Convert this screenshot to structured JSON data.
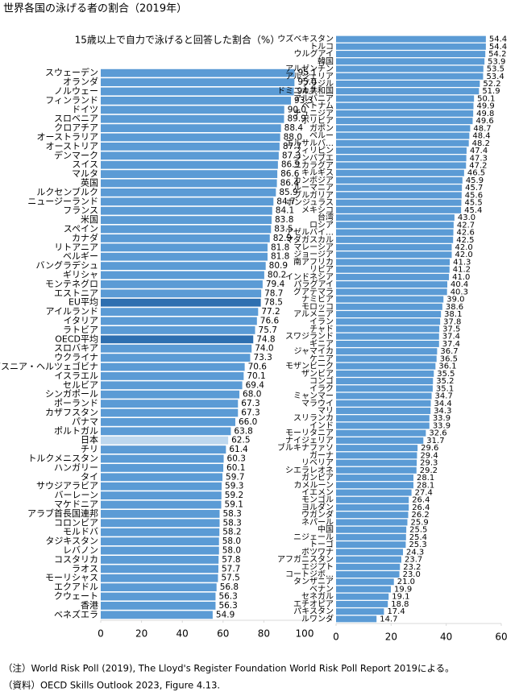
{
  "title": "世界各国の泳げる者の割合（2019年）",
  "notes": [
    "（注）World Risk Poll (2019), The Lloyd's Register Foundation World Risk Poll Report 2019による。",
    "（資料）OECD Skills Outlook 2023, Figure 4.13."
  ],
  "chart_data": [
    {
      "type": "bar",
      "orientation": "horizontal",
      "subtitle": "15歳以上で自力で泳げると回答した割合（%）",
      "categories": [
        "スウェーデン",
        "オランダ",
        "ノルウェー",
        "フィンランド",
        "ドイツ",
        "スロベニア",
        "クロアチア",
        "オーストラリア",
        "オーストリア",
        "デンマーク",
        "スイス",
        "マルタ",
        "英国",
        "ルクセンブルク",
        "ニュージーランド",
        "フランス",
        "米国",
        "スペイン",
        "カナダ",
        "リトアニア",
        "ベルギー",
        "バングラデシュ",
        "ギリシャ",
        "モンテネグロ",
        "エストニア",
        "EU平均",
        "アイルランド",
        "イタリア",
        "ラトビア",
        "OECD平均",
        "スロバキア",
        "ウクライナ",
        "ボスニア・ヘルツェゴビナ",
        "イスラエル",
        "セルビア",
        "シンガポール",
        "ポーランド",
        "カザフスタン",
        "パナマ",
        "ポルトガル",
        "日本",
        "チリ",
        "トルクメニスタン",
        "ハンガリー",
        "タイ",
        "サウジアラビア",
        "バーレーン",
        "マケドニア",
        "アラブ首長国連邦",
        "コロンビア",
        "モルドバ",
        "タジキスタン",
        "レバノン",
        "コスタリカ",
        "ラオス",
        "モーリシャス",
        "エクアドル",
        "クウェート",
        "香港",
        "ベネズエラ"
      ],
      "values": [
        95.1,
        95.0,
        94.7,
        93.3,
        90.0,
        89.9,
        88.4,
        88.0,
        87.7,
        87.3,
        86.9,
        86.6,
        86.4,
        85.9,
        84.7,
        84.1,
        83.8,
        83.5,
        82.9,
        81.8,
        81.8,
        80.9,
        80.2,
        79.4,
        78.7,
        78.5,
        77.2,
        76.6,
        75.7,
        74.8,
        74.0,
        73.3,
        70.6,
        70.1,
        69.4,
        68.0,
        67.3,
        67.3,
        66.0,
        63.8,
        62.5,
        61.4,
        60.3,
        60.1,
        59.7,
        59.3,
        59.2,
        59.1,
        58.3,
        58.3,
        58.2,
        58.0,
        58.0,
        57.8,
        57.7,
        57.5,
        56.8,
        56.3,
        56.3,
        54.9
      ],
      "value_labels": [
        "95.1",
        "95.0",
        "94.7",
        "93.3",
        "90.0",
        "89.9",
        "88.4",
        "88.0",
        "87.7",
        "87.3",
        "86.9",
        "86.6",
        "86.4",
        "85.9",
        "84.7",
        "84.1",
        "83.8",
        "83.5",
        "82.9",
        "81.8",
        "81.8",
        "80.9",
        "80.2",
        "79.4",
        "78.7",
        "78.5",
        "77.2",
        "76.6",
        "75.7",
        "74.8",
        "74.0",
        "73.3",
        "70.6",
        "70.1",
        "69.4",
        "68.0",
        "67.3",
        "67.3",
        "66.0",
        "63.8",
        "62.5",
        "61.4",
        "60.3",
        "60.1",
        "59.7",
        "59.3",
        "59.2",
        "59.1",
        "58.3",
        "58.3",
        "58.2",
        "58.0",
        "58.0",
        "57.8",
        "57.7",
        "57.5",
        "56.8",
        "56.3",
        "56.3",
        "54.9"
      ],
      "colors": [
        "#5b9bd5",
        "#5b9bd5",
        "#5b9bd5",
        "#5b9bd5",
        "#5b9bd5",
        "#5b9bd5",
        "#5b9bd5",
        "#5b9bd5",
        "#5b9bd5",
        "#5b9bd5",
        "#5b9bd5",
        "#5b9bd5",
        "#5b9bd5",
        "#5b9bd5",
        "#5b9bd5",
        "#5b9bd5",
        "#5b9bd5",
        "#5b9bd5",
        "#5b9bd5",
        "#5b9bd5",
        "#5b9bd5",
        "#5b9bd5",
        "#5b9bd5",
        "#5b9bd5",
        "#5b9bd5",
        "#2e6fb0",
        "#5b9bd5",
        "#5b9bd5",
        "#5b9bd5",
        "#2e6fb0",
        "#5b9bd5",
        "#5b9bd5",
        "#5b9bd5",
        "#5b9bd5",
        "#5b9bd5",
        "#5b9bd5",
        "#5b9bd5",
        "#5b9bd5",
        "#5b9bd5",
        "#5b9bd5",
        "#bdd7ee",
        "#5b9bd5",
        "#5b9bd5",
        "#5b9bd5",
        "#5b9bd5",
        "#5b9bd5",
        "#5b9bd5",
        "#5b9bd5",
        "#5b9bd5",
        "#5b9bd5",
        "#5b9bd5",
        "#5b9bd5",
        "#5b9bd5",
        "#5b9bd5",
        "#5b9bd5",
        "#5b9bd5",
        "#5b9bd5",
        "#5b9bd5",
        "#5b9bd5",
        "#5b9bd5"
      ],
      "xlim": [
        0,
        100
      ],
      "xticks": [
        0,
        20,
        40,
        60,
        80,
        100
      ]
    },
    {
      "type": "bar",
      "orientation": "horizontal",
      "categories": [
        "ウズベキスタン",
        "トルコ",
        "ウルグアイ",
        "韓国",
        "アルゼンチン",
        "アルジェリア",
        "ブラジル",
        "ドミニカ共和国",
        "アルバニア",
        "ベトナム",
        "チュニジア",
        "ボリビア",
        "ガボン",
        "ペルー",
        "エルサルバ…",
        "フィリピン",
        "ジンバブエ",
        "ニカラグア",
        "キルギス",
        "カンボジア",
        "ルーマニア",
        "ブルガリア",
        "ホンジュラス",
        "メキシコ",
        "台湾",
        "ロシア",
        "アゼルバイ…",
        "マダガスカル",
        "マレーシア",
        "ジョージア",
        "南アフリカ",
        "リビア",
        "インドネシア",
        "パラグアイ",
        "グアテマラ",
        "ナミビア",
        "モロッコ",
        "アルメニア",
        "イラン",
        "チャド",
        "スワジランド",
        "ギニア",
        "ジャマイカ",
        "ケニア",
        "モザンビーク",
        "ザンビア",
        "コンゴ",
        "イラク",
        "ミャンマー",
        "マラウイ",
        "マリ",
        "スリランカ",
        "インド",
        "モーリタニア",
        "ナイジェリア",
        "ブルキナファソ",
        "ガーナ",
        "リベリア",
        "シエラレオネ",
        "ガンビア",
        "カメルーン",
        "イエメン",
        "モンゴル",
        "ヨルダン",
        "ウガンダ",
        "ネパール",
        "中国",
        "ニジェール",
        "トーゴ",
        "ボツワナ",
        "アフガニスタン",
        "エジプト",
        "コートジボ…",
        "タンザニア",
        "ベナン",
        "セネガル",
        "エチオピア",
        "パキスタン",
        "ルワンダ"
      ],
      "values": [
        54.4,
        54.4,
        54.2,
        53.9,
        53.5,
        53.4,
        52.2,
        51.9,
        50.1,
        49.9,
        49.8,
        49.6,
        48.7,
        48.4,
        48.2,
        47.4,
        47.3,
        47.2,
        46.5,
        45.9,
        45.7,
        45.6,
        45.5,
        45.4,
        43.0,
        42.7,
        42.6,
        42.5,
        42.0,
        42.0,
        41.3,
        41.2,
        41.0,
        40.4,
        40.3,
        39.0,
        38.6,
        38.1,
        37.8,
        37.5,
        37.4,
        37.4,
        36.7,
        36.5,
        36.1,
        35.5,
        35.2,
        35.1,
        34.7,
        34.4,
        34.3,
        33.9,
        33.9,
        32.6,
        31.7,
        29.6,
        29.4,
        29.3,
        29.2,
        28.1,
        28.1,
        27.4,
        26.4,
        26.4,
        26.2,
        25.9,
        25.5,
        25.4,
        25.3,
        24.3,
        23.7,
        23.2,
        23.0,
        21.0,
        19.9,
        19.1,
        18.8,
        17.4,
        14.7
      ],
      "value_labels": [
        "54.4",
        "54.4",
        "54.2",
        "53.9",
        "53.5",
        "53.4",
        "52.2",
        "51.9",
        "50.1",
        "49.9",
        "49.8",
        "49.6",
        "48.7",
        "48.4",
        "48.2",
        "47.4",
        "47.3",
        "47.2",
        "46.5",
        "45.9",
        "45.7",
        "45.6",
        "45.5",
        "45.4",
        "43.0",
        "42.7",
        "42.6",
        "42.5",
        "42.0",
        "42.0",
        "41.3",
        "41.2",
        "41.0",
        "40.4",
        "40.3",
        "39.0",
        "38.6",
        "38.1",
        "37.8",
        "37.5",
        "37.4",
        "37.4",
        "36.7",
        "36.5",
        "36.1",
        "35.5",
        "35.2",
        "35.1",
        "34.7",
        "34.4",
        "34.3",
        "33.9",
        "33.9",
        "32.6",
        "31.7",
        "29.6",
        "29.4",
        "29.3",
        "29.2",
        "28.1",
        "28.1",
        "27.4",
        "26.4",
        "26.4",
        "26.2",
        "25.9",
        "25.5",
        "25.4",
        "25.3",
        "24.3",
        "23.7",
        "23.2",
        "23.0",
        "21.0",
        "19.9",
        "19.1",
        "18.8",
        "17.4",
        "14.7"
      ],
      "color": "#5b9bd5",
      "xlim": [
        0,
        60
      ],
      "xticks": [
        0,
        20,
        40,
        60
      ]
    }
  ]
}
